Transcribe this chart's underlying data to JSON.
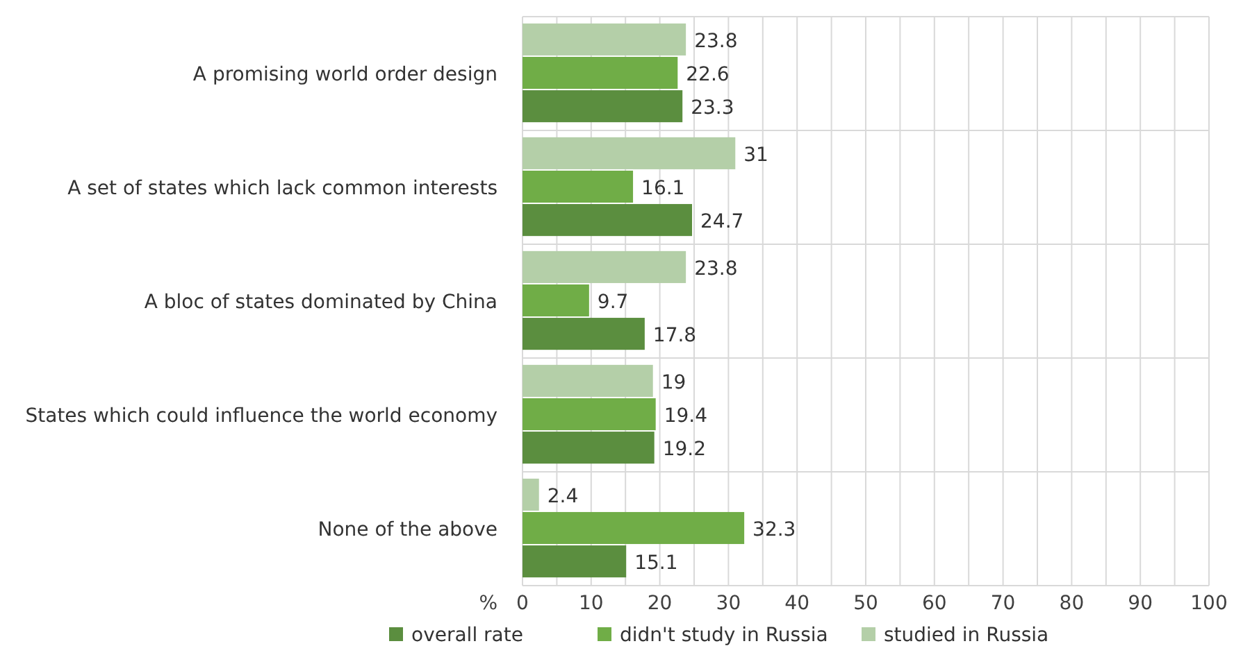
{
  "chart_data": {
    "type": "bar",
    "orientation": "horizontal",
    "xlabel": "%",
    "categories": [
      "A promising world order design",
      "A set of states which lack common interests ",
      "A bloc of states dominated by China",
      "States which could influence the world economy",
      "None of the above"
    ],
    "series": [
      {
        "name": "overall rate",
        "color": "#5b8e3f",
        "values": [
          23.3,
          24.7,
          17.8,
          19.2,
          15.1
        ]
      },
      {
        "name": "didn't study in Russia",
        "color": "#70ad47",
        "values": [
          22.6,
          16.1,
          9.7,
          19.4,
          32.3
        ]
      },
      {
        "name": "studied in Russia",
        "color": "#b4cfa8",
        "values": [
          23.8,
          31,
          23.8,
          19,
          2.4
        ]
      }
    ],
    "xlim": [
      0,
      100
    ],
    "xticks": [
      0,
      {
        "value": 5,
        "label": null
      },
      10,
      {
        "value": 15,
        "label": null
      },
      20,
      {
        "value": 25,
        "label": null
      },
      30,
      {
        "value": 35,
        "label": null
      },
      40,
      {
        "value": 45,
        "label": null
      },
      50,
      {
        "value": 55,
        "label": null
      },
      60,
      {
        "value": 65,
        "label": null
      },
      70,
      {
        "value": 75,
        "label": null
      },
      80,
      {
        "value": 85,
        "label": null
      },
      90,
      {
        "value": 95,
        "label": null
      },
      100
    ],
    "grid": true,
    "data_labels": true,
    "legend": "bottom"
  }
}
